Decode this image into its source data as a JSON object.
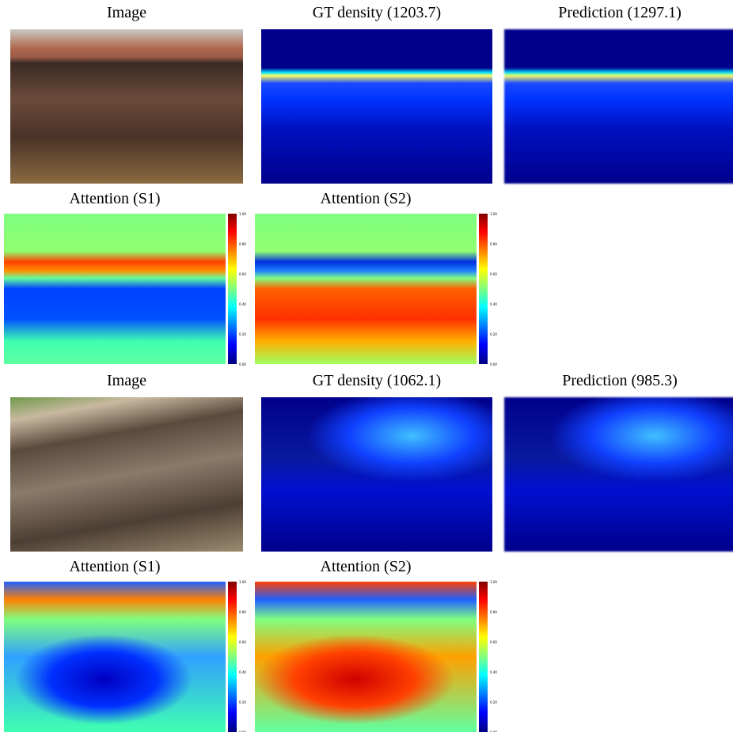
{
  "blocks": [
    {
      "row1": [
        {
          "title": "Image"
        },
        {
          "title": "GT density (1203.7)"
        },
        {
          "title": "Prediction (1297.1)"
        }
      ],
      "row2": [
        {
          "title": "Attention (S1)"
        },
        {
          "title": "Attention (S2)"
        }
      ]
    },
    {
      "row1": [
        {
          "title": "Image"
        },
        {
          "title": "GT density (1062.1)"
        },
        {
          "title": "Prediction (985.3)"
        }
      ],
      "row2": [
        {
          "title": "Attention (S1)"
        },
        {
          "title": "Attention (S2)"
        }
      ]
    }
  ],
  "colorbar_ticks": [
    "1.00",
    "0.80",
    "0.60",
    "0.40",
    "0.20",
    "0.00"
  ]
}
